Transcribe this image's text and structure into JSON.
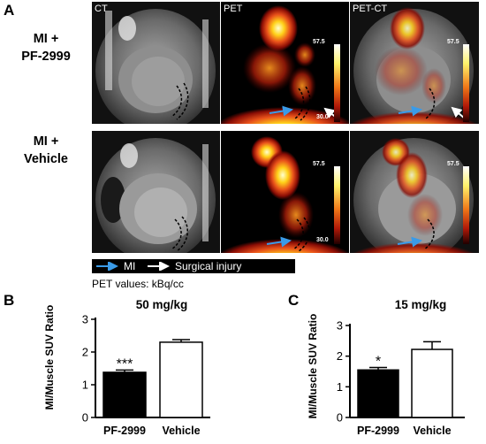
{
  "panel_letters": {
    "a": "A",
    "b": "B",
    "c": "C"
  },
  "rows": [
    {
      "label_line1": "MI +",
      "label_line2": "PF-2999"
    },
    {
      "label_line1": "MI +",
      "label_line2": "Vehicle"
    }
  ],
  "columns": {
    "ct": "CT",
    "pet": "PET",
    "petct": "PET-CT"
  },
  "colorbar": {
    "max": "57.5",
    "min": "30.0"
  },
  "legend": {
    "mi": "MI",
    "surgical": "Surgical injury",
    "units": "PET values: kBq/cc"
  },
  "colors": {
    "mi_arrow": "#3a9be8",
    "surgical_arrow": "#ffffff",
    "bar_pf": "#000000",
    "bar_vehicle": "#ffffff"
  },
  "chart_data": [
    {
      "type": "bar",
      "title": "50 mg/kg",
      "ylabel": "MI/Muscle SUV Ratio",
      "categories": [
        "PF-2999",
        "Vehicle"
      ],
      "values": [
        1.38,
        2.3
      ],
      "errors": [
        0.07,
        0.08
      ],
      "significance": [
        "***",
        ""
      ],
      "ylim": [
        0,
        3
      ],
      "yticks": [
        "0",
        "1",
        "2",
        "3"
      ]
    },
    {
      "type": "bar",
      "title": "15 mg/kg",
      "ylabel": "MI/Muscle SUV Ratio",
      "categories": [
        "PF-2999",
        "Vehicle"
      ],
      "values": [
        1.55,
        2.22
      ],
      "errors": [
        0.08,
        0.25
      ],
      "significance": [
        "*",
        ""
      ],
      "ylim": [
        0,
        3
      ],
      "yticks": [
        "0",
        "1",
        "2",
        "3"
      ]
    }
  ]
}
